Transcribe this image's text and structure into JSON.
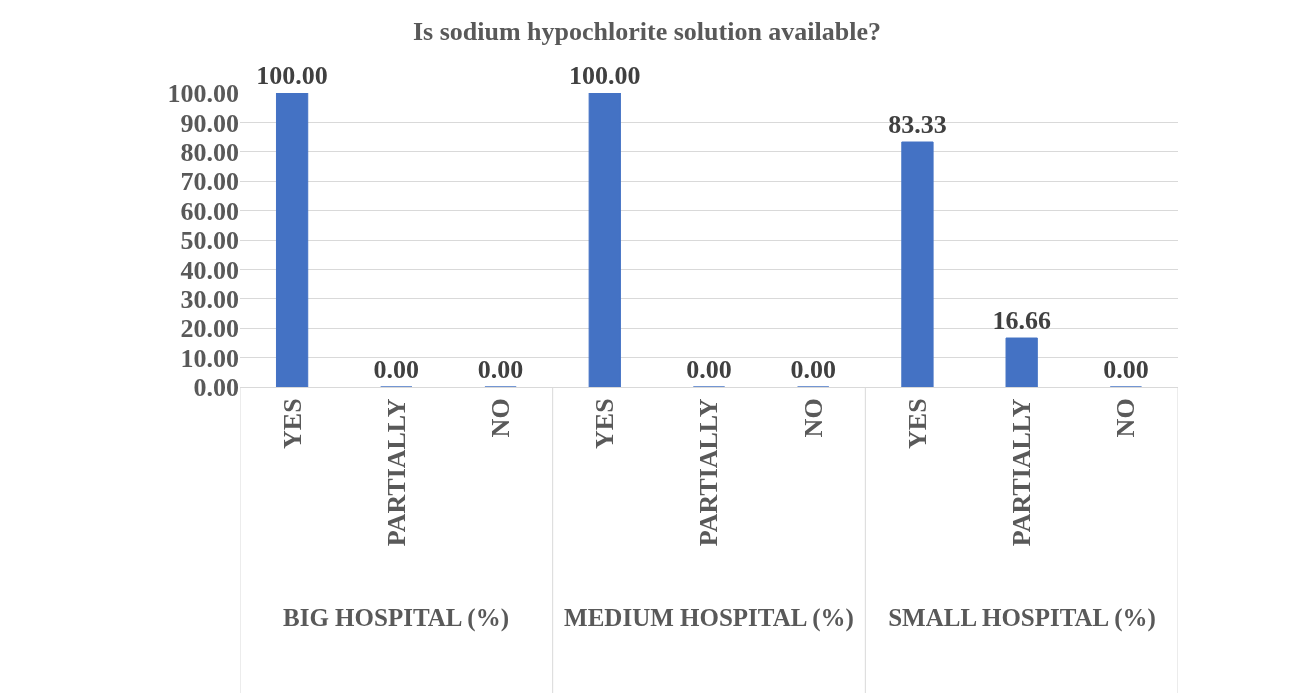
{
  "chart_data": {
    "type": "bar",
    "title": "Is sodium hypochlorite solution available?",
    "categories": [
      "YES",
      "PARTIALLY",
      "NO",
      "YES",
      "PARTIALLY",
      "NO",
      "YES",
      "PARTIALLY",
      "NO"
    ],
    "values": [
      100,
      0,
      0,
      100,
      0,
      0,
      83.33,
      16.66,
      0
    ],
    "value_labels": [
      "100.00",
      "0.00",
      "0.00",
      "100.00",
      "0.00",
      "0.00",
      "83.33",
      "16.66",
      "0.00"
    ],
    "color": "#4472c4",
    "ylim": [
      0,
      100
    ],
    "yticks": [
      {
        "value": 0,
        "label": "0.00"
      },
      {
        "value": 10,
        "label": "10.00"
      },
      {
        "value": 20,
        "label": "20.00"
      },
      {
        "value": 30,
        "label": "30.00"
      },
      {
        "value": 40,
        "label": "40.00"
      },
      {
        "value": 50,
        "label": "50.00"
      },
      {
        "value": 60,
        "label": "60.00"
      },
      {
        "value": 70,
        "label": "70.00"
      },
      {
        "value": 80,
        "label": "80.00"
      },
      {
        "value": 90,
        "label": "90.00"
      },
      {
        "value": 100,
        "label": "100.00"
      }
    ],
    "grid": "y",
    "legend": false,
    "annotations": [
      "BIG HOSPITAL (%)",
      "MEDIUM HOSPITAL (%)",
      "SMALL HOSPITAL (%)"
    ]
  }
}
